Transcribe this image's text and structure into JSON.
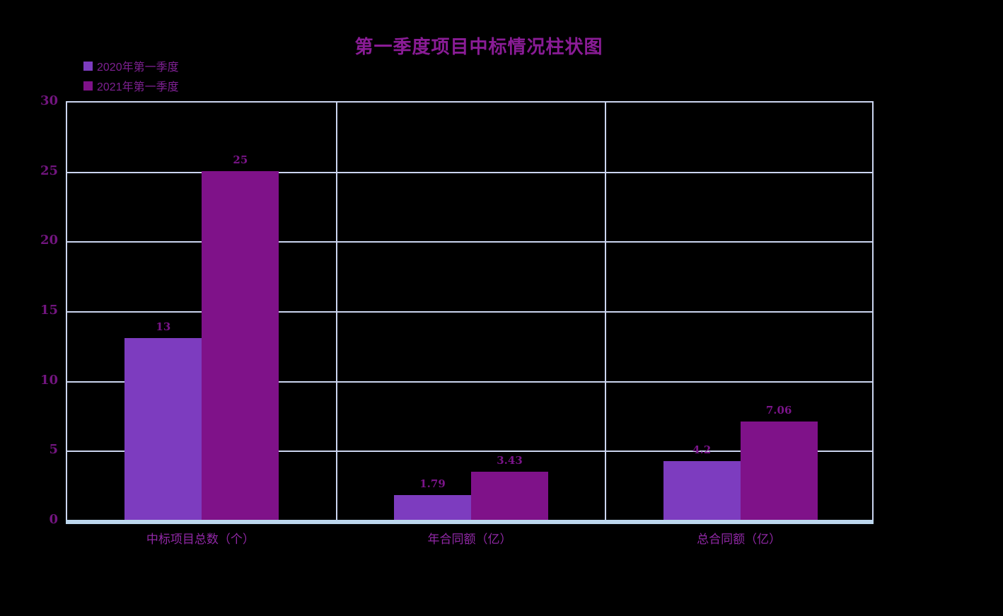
{
  "chart_data": {
    "type": "bar",
    "title": "第一季度项目中标情况柱状图",
    "categories": [
      "中标项目总数（个）",
      "年合同额（亿）",
      "总合同额（亿）"
    ],
    "series": [
      {
        "name": "2020年第一季度",
        "color": "#7D3CBF",
        "values": [
          13,
          1.79,
          4.2
        ]
      },
      {
        "name": "2021年第一季度",
        "color": "#7F1289",
        "values": [
          25,
          3.43,
          7.06
        ]
      }
    ],
    "value_labels": [
      [
        "13",
        "1.79",
        "4.2"
      ],
      [
        "25",
        "3.43",
        "7.06"
      ]
    ],
    "ylim": [
      0,
      30
    ],
    "yticks": [
      0,
      5,
      10,
      15,
      20,
      25,
      30
    ],
    "grid": true,
    "legend_position": "top-left",
    "colors": {
      "background": "#000000",
      "gridline": "#CBD5F0",
      "plot_border": "#CBD5F0",
      "axis_line": "#BDD7EE",
      "title_text": "#8A1C96",
      "tick_label": "#72157F",
      "value_label": "#7A1489",
      "category_label": "#9128A6",
      "legend_text": "#7E2092"
    }
  }
}
